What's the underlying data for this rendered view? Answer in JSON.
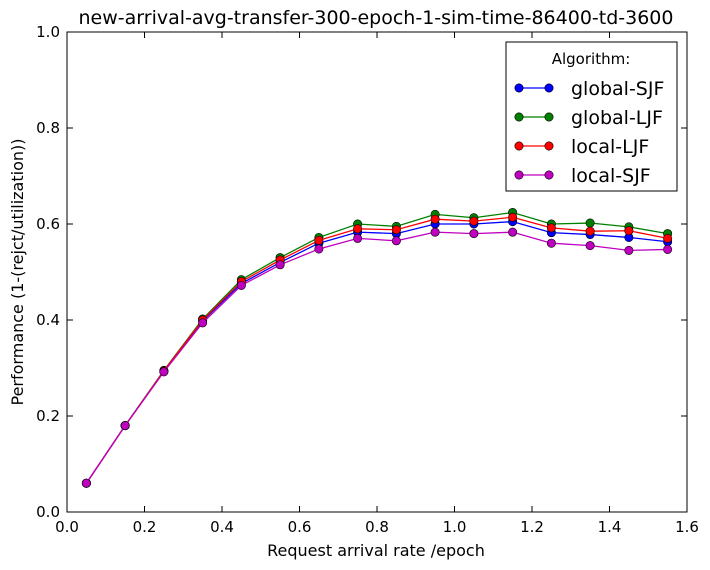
{
  "chart_data": {
    "type": "line",
    "title": "new-arrival-avg-transfer-300-epoch-1-sim-time-86400-td-3600",
    "xlabel": "Request arrival rate /epoch",
    "ylabel": "Performance (1-(rejct/utilization))",
    "xlim": [
      0.0,
      1.6
    ],
    "ylim": [
      0.0,
      1.0
    ],
    "x_ticks": [
      "0.0",
      "0.2",
      "0.4",
      "0.6",
      "0.8",
      "1.0",
      "1.2",
      "1.4",
      "1.6"
    ],
    "y_ticks": [
      "0.0",
      "0.2",
      "0.4",
      "0.6",
      "0.8",
      "1.0"
    ],
    "grid": false,
    "legend_title": "Algorithm:",
    "legend_position": "top-right",
    "x": [
      0.05,
      0.15,
      0.25,
      0.35,
      0.45,
      0.55,
      0.65,
      0.75,
      0.85,
      0.95,
      1.05,
      1.15,
      1.25,
      1.35,
      1.45,
      1.55
    ],
    "series": [
      {
        "name": "global-SJF",
        "color": "#0000ff",
        "values": [
          0.06,
          0.18,
          0.293,
          0.398,
          0.476,
          0.52,
          0.56,
          0.583,
          0.58,
          0.6,
          0.6,
          0.605,
          0.582,
          0.578,
          0.572,
          0.563
        ]
      },
      {
        "name": "global-LJF",
        "color": "#008000",
        "values": [
          0.06,
          0.18,
          0.295,
          0.402,
          0.484,
          0.53,
          0.572,
          0.6,
          0.595,
          0.62,
          0.613,
          0.624,
          0.6,
          0.602,
          0.594,
          0.58
        ]
      },
      {
        "name": "local-LJF",
        "color": "#ff0000",
        "values": [
          0.06,
          0.18,
          0.294,
          0.4,
          0.48,
          0.525,
          0.566,
          0.59,
          0.588,
          0.61,
          0.606,
          0.614,
          0.592,
          0.585,
          0.586,
          0.57
        ]
      },
      {
        "name": "local-SJF",
        "color": "#bf00bf",
        "values": [
          0.06,
          0.18,
          0.292,
          0.394,
          0.472,
          0.515,
          0.548,
          0.57,
          0.565,
          0.583,
          0.58,
          0.583,
          0.56,
          0.555,
          0.545,
          0.547
        ]
      }
    ]
  }
}
